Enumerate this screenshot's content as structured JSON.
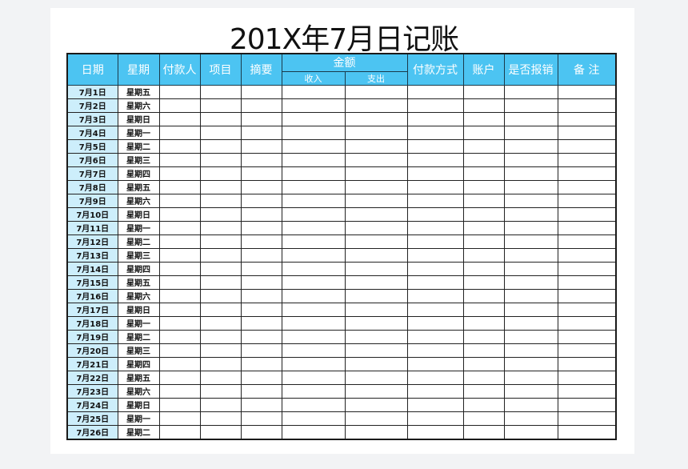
{
  "title": "201X年7月日记账",
  "headers": {
    "date": "日期",
    "weekday": "星期",
    "payer": "付款人",
    "item": "项目",
    "summary": "摘要",
    "amount": "金额",
    "income": "收入",
    "expense": "支出",
    "payment_method": "付款方式",
    "account": "账户",
    "reimbursed": "是否报销",
    "remarks": "备 注"
  },
  "colors": {
    "header": "#4cc4f2",
    "date_col": "#cdeefb"
  },
  "rows": [
    {
      "date": "7月1日",
      "weekday": "星期五"
    },
    {
      "date": "7月2日",
      "weekday": "星期六"
    },
    {
      "date": "7月3日",
      "weekday": "星期日"
    },
    {
      "date": "7月4日",
      "weekday": "星期一"
    },
    {
      "date": "7月5日",
      "weekday": "星期二"
    },
    {
      "date": "7月6日",
      "weekday": "星期三"
    },
    {
      "date": "7月7日",
      "weekday": "星期四"
    },
    {
      "date": "7月8日",
      "weekday": "星期五"
    },
    {
      "date": "7月9日",
      "weekday": "星期六"
    },
    {
      "date": "7月10日",
      "weekday": "星期日"
    },
    {
      "date": "7月11日",
      "weekday": "星期一"
    },
    {
      "date": "7月12日",
      "weekday": "星期二"
    },
    {
      "date": "7月13日",
      "weekday": "星期三"
    },
    {
      "date": "7月14日",
      "weekday": "星期四"
    },
    {
      "date": "7月15日",
      "weekday": "星期五"
    },
    {
      "date": "7月16日",
      "weekday": "星期六"
    },
    {
      "date": "7月17日",
      "weekday": "星期日"
    },
    {
      "date": "7月18日",
      "weekday": "星期一"
    },
    {
      "date": "7月19日",
      "weekday": "星期二"
    },
    {
      "date": "7月20日",
      "weekday": "星期三"
    },
    {
      "date": "7月21日",
      "weekday": "星期四"
    },
    {
      "date": "7月22日",
      "weekday": "星期五"
    },
    {
      "date": "7月23日",
      "weekday": "星期六"
    },
    {
      "date": "7月24日",
      "weekday": "星期日"
    },
    {
      "date": "7月25日",
      "weekday": "星期一"
    },
    {
      "date": "7月26日",
      "weekday": "星期二"
    }
  ]
}
